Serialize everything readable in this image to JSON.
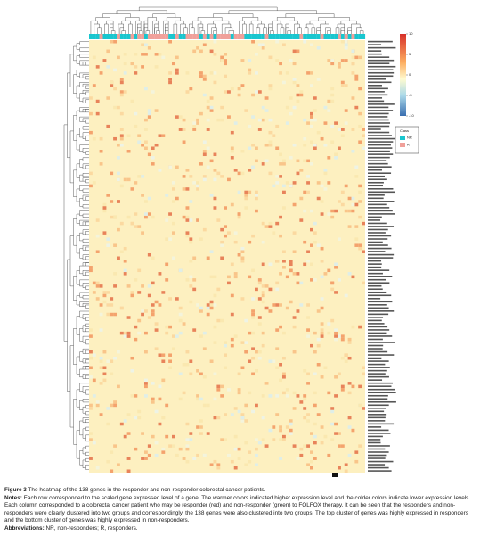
{
  "legend": {
    "scale_ticks": [
      10,
      5,
      0,
      -5,
      -10
    ],
    "class_title": "Class",
    "classes": [
      {
        "name": "NR",
        "color": "#19c6cf"
      },
      {
        "name": "R",
        "color": "#f0a09a"
      }
    ]
  },
  "caption": {
    "figure_label": "Figure 3",
    "title": "The heatmap of the 138 genes in the responder and non-responder colorectal cancer patients.",
    "notes_label": "Notes:",
    "notes_text": "Each row corresponded to the scaled gene expressed level of a gene. The warmer colors indicated higher expression level and the colder colors indicate lower expression levels. Each column corresponded to a colorectal cancer patient who may be responder (red) and non-responder (green) to FOLFOX therapy. It can be seen that the responders and non-responders were clearly clustered into two groups and correspondingly, the 138 genes were also clustered into two groups. The top cluster of genes was highly expressed in responders and the bottom cluster of genes was highly expressed in non-responders.",
    "abbr_label": "Abbreviations:",
    "abbr_text": "NR, non-responders; R, responders."
  }
}
